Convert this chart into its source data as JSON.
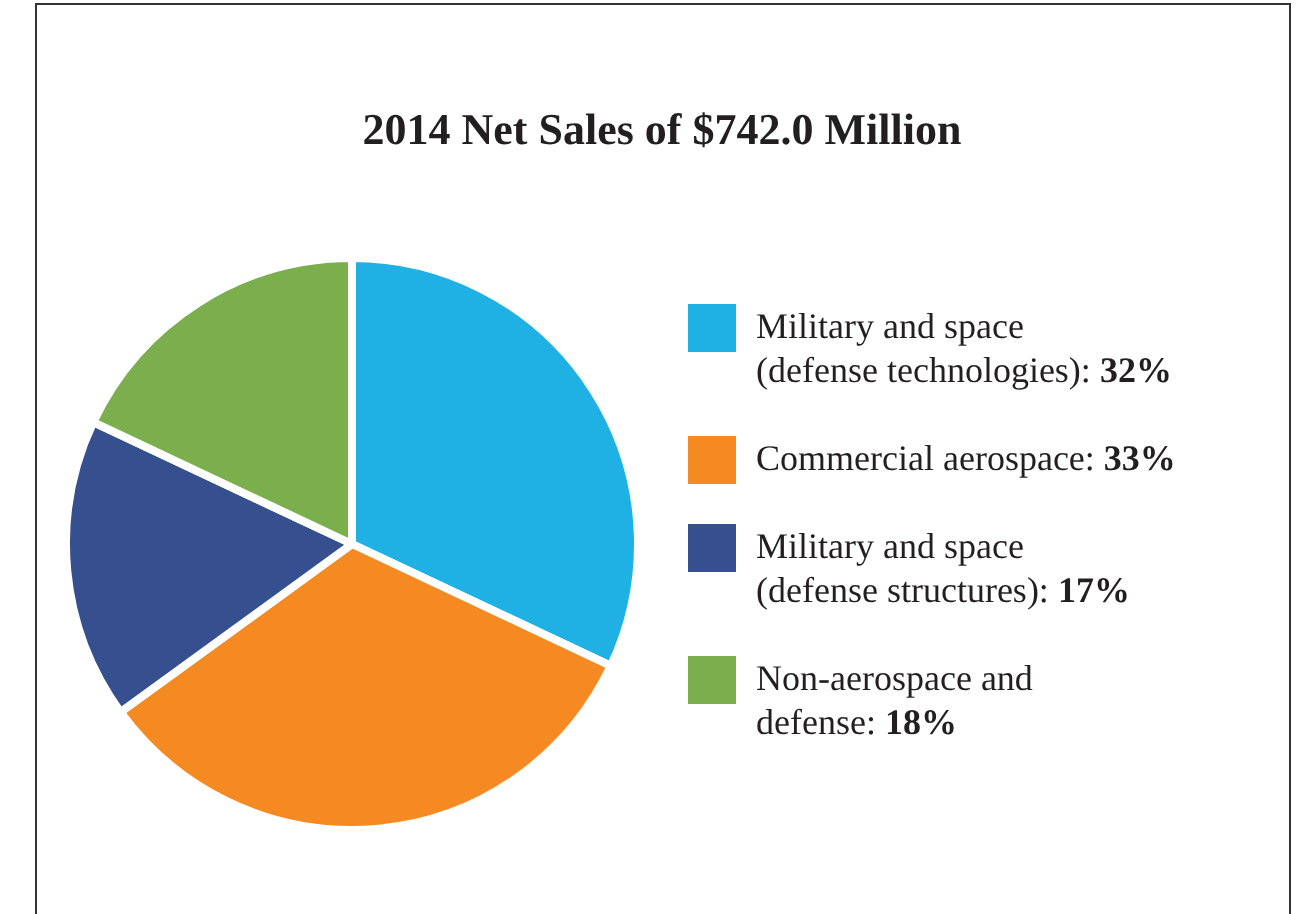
{
  "chart_data": {
    "type": "pie",
    "title": "2014 Net Sales of $742.0 Million",
    "categories": [
      "Military and space (defense technologies): 32%",
      "Commercial aerospace: 33%",
      "Military and space (defense structures): 17%",
      "Non-aerospace and defense: 18%"
    ],
    "values": [
      32,
      33,
      17,
      18
    ],
    "colors": [
      "#1fb0e4",
      "#f58a23",
      "#36508f",
      "#7bae4d"
    ],
    "legend": "right"
  }
}
